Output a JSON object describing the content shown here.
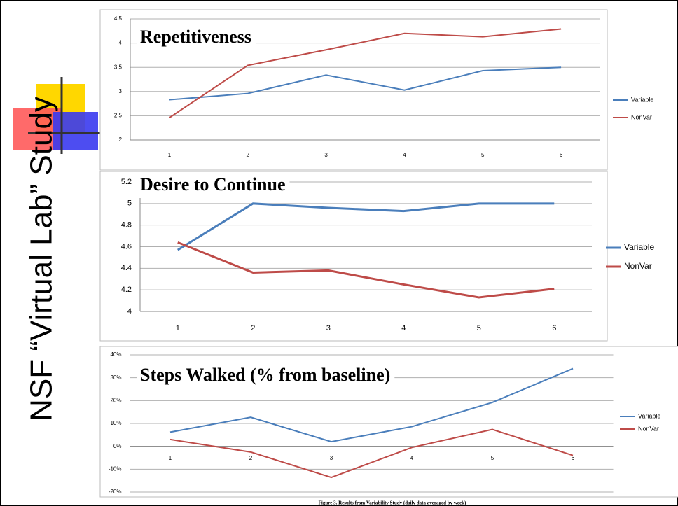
{
  "slide_title": "NSF “Virtual Lab” Study",
  "caption": "Figure 3. Results from Variability Study (daily data averaged by week)",
  "chart_data": [
    {
      "type": "line",
      "title": "Repetitiveness",
      "categories": [
        "1",
        "2",
        "3",
        "4",
        "5",
        "6"
      ],
      "series": [
        {
          "name": "Variable",
          "color": "#4a7ebb",
          "values": [
            2.83,
            2.96,
            3.34,
            3.03,
            3.43,
            3.5
          ]
        },
        {
          "name": "NonVar",
          "color": "#be4b48",
          "values": [
            2.46,
            3.54,
            3.86,
            4.2,
            4.13,
            4.29
          ]
        }
      ],
      "ylim": [
        2,
        4.5
      ],
      "yticks": [
        2,
        2.5,
        3,
        3.5,
        4,
        4.5
      ],
      "grid": true,
      "legend": "right"
    },
    {
      "type": "line",
      "title": "Desire to Continue",
      "categories": [
        "1",
        "2",
        "3",
        "4",
        "5",
        "6"
      ],
      "series": [
        {
          "name": "Variable",
          "color": "#4a7ebb",
          "values": [
            4.57,
            5,
            4.96,
            4.93,
            5,
            5
          ]
        },
        {
          "name": "NonVar",
          "color": "#be4b48",
          "values": [
            4.64,
            4.36,
            4.38,
            4.25,
            4.13,
            4.21
          ]
        }
      ],
      "ylim": [
        4,
        5.2
      ],
      "yticks": [
        4,
        4.2,
        4.4,
        4.6,
        4.8,
        5,
        5.2
      ],
      "grid": true,
      "legend": "right"
    },
    {
      "type": "line",
      "title": "Steps Walked (% from baseline)",
      "categories": [
        "1",
        "2",
        "3",
        "4",
        "5",
        "6"
      ],
      "series": [
        {
          "name": "Variable",
          "color": "#4a7ebb",
          "values": [
            6.2,
            12.7,
            2,
            8.6,
            19.2,
            34
          ]
        },
        {
          "name": "NonVar",
          "color": "#be4b48",
          "values": [
            3,
            -2.5,
            -13.6,
            -0.5,
            7.4,
            -4
          ]
        }
      ],
      "ylim": [
        -20,
        40
      ],
      "yticks": [
        {
          "value": -20,
          "label": "-20%"
        },
        {
          "value": -10,
          "label": "-10%"
        },
        {
          "value": 0,
          "label": "0%"
        },
        {
          "value": 10,
          "label": "10%"
        },
        {
          "value": 20,
          "label": "20%"
        },
        {
          "value": 30,
          "label": "30%"
        },
        {
          "value": 40,
          "label": "40%"
        }
      ],
      "grid": true,
      "legend": "right"
    }
  ]
}
